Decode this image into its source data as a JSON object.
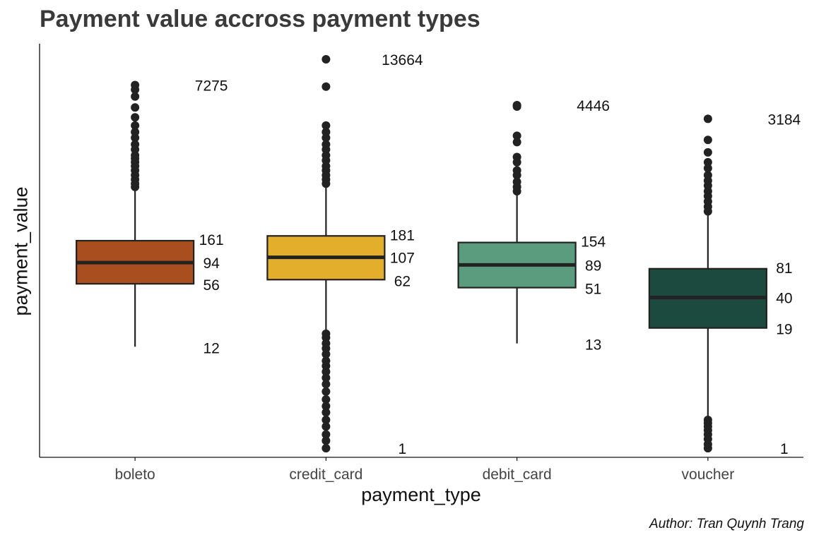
{
  "chart_data": {
    "type": "box",
    "title": "Payment value accross payment types",
    "xlabel": "payment_type",
    "ylabel": "payment_value",
    "scale": "log",
    "ylim": [
      0.8,
      20000
    ],
    "grid": false,
    "legend": "none",
    "caption": "Author: Tran Quynh Trang",
    "categories": [
      "boleto",
      "credit_card",
      "debit_card",
      "voucher"
    ],
    "boxes": [
      {
        "category": "boleto",
        "color": "#A94E1F",
        "min": 12,
        "q1": 56,
        "median": 94,
        "q3": 161,
        "max": 7275,
        "labels": {
          "max": "7275",
          "q3": "161",
          "median": "94",
          "q1": "56",
          "min": "12"
        },
        "whisker_low": 12,
        "whisker_high": 560,
        "outliers_low": [],
        "outliers_high": [
          600,
          650,
          720,
          800,
          900,
          1000,
          1100,
          1200,
          1300,
          1500,
          1700,
          2000,
          2300,
          2700,
          3300,
          4200,
          5500,
          6500,
          7275
        ]
      },
      {
        "category": "credit_card",
        "color": "#E2AE2B",
        "min": 1,
        "q1": 62,
        "median": 107,
        "q3": 181,
        "max": 13664,
        "labels": {
          "max": "13664",
          "q3": "181",
          "median": "107",
          "q1": "62",
          "min": "1"
        },
        "whisker_low": 18,
        "whisker_high": 600,
        "outliers_low": [
          1,
          1.2,
          1.4,
          1.7,
          2,
          2.4,
          2.8,
          3.3,
          4,
          4.8,
          5.6,
          6.5,
          7.5,
          8.5,
          10,
          11.5,
          13,
          15,
          16.5
        ],
        "outliers_high": [
          650,
          720,
          800,
          900,
          1000,
          1150,
          1300,
          1500,
          1700,
          2000,
          2300,
          2700,
          7000,
          13664
        ]
      },
      {
        "category": "debit_card",
        "color": "#5B9C7F",
        "min": 13,
        "q1": 51,
        "median": 89,
        "q3": 154,
        "max": 4446,
        "labels": {
          "max": "4446",
          "q3": "154",
          "median": "89",
          "q1": "51",
          "min": "13"
        },
        "whisker_low": 13,
        "whisker_high": 500,
        "outliers_low": [],
        "outliers_high": [
          540,
          600,
          680,
          800,
          900,
          1100,
          1250,
          1800,
          2100,
          4300,
          4446
        ]
      },
      {
        "category": "voucher",
        "color": "#1D4A3E",
        "min": 1,
        "q1": 19,
        "median": 40,
        "q3": 81,
        "max": 3184,
        "labels": {
          "max": "3184",
          "q3": "81",
          "median": "40",
          "q1": "19",
          "min": "1"
        },
        "whisker_low": 2.2,
        "whisker_high": 300,
        "outliers_low": [
          1,
          1.1,
          1.25,
          1.4,
          1.55,
          1.7,
          1.85,
          2
        ],
        "outliers_high": [
          330,
          370,
          420,
          480,
          540,
          620,
          700,
          800,
          950,
          1100,
          1400,
          1900,
          3184
        ]
      }
    ]
  }
}
